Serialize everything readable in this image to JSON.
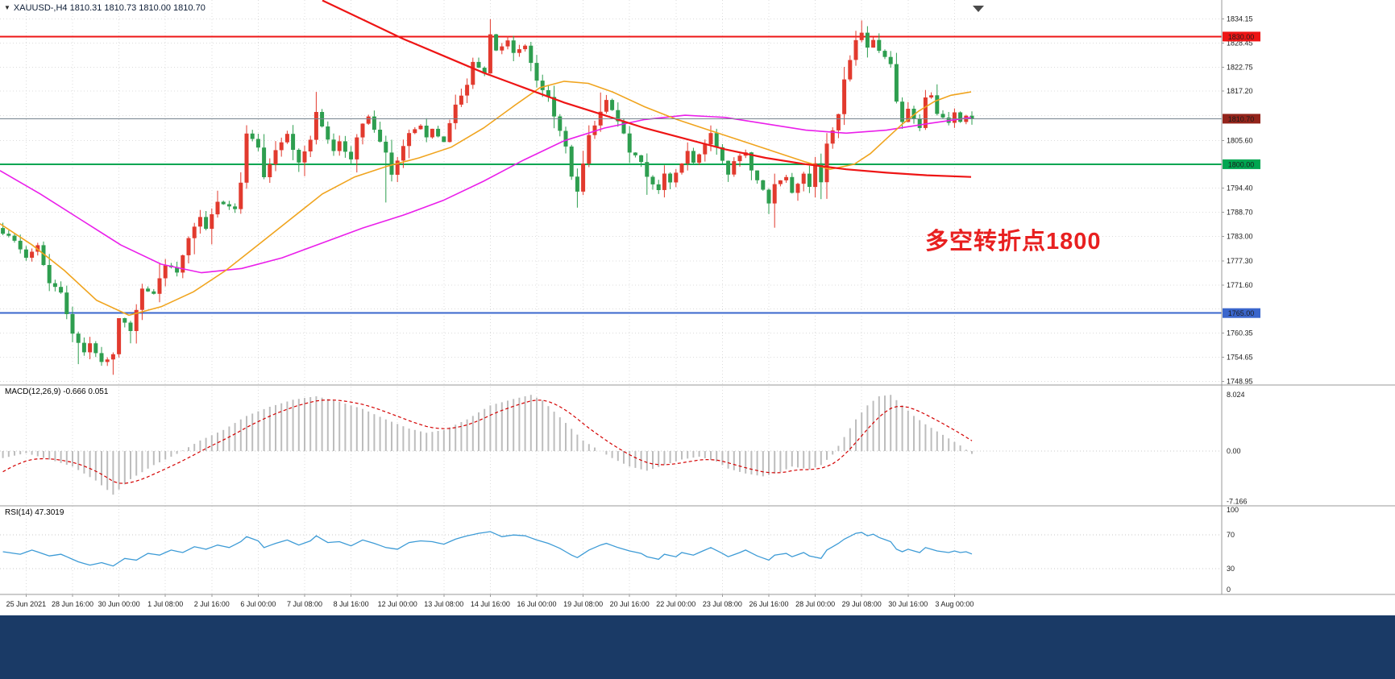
{
  "window": {
    "symbol_info": "XAUUSD-,H4  1810.31 1810.73 1810.00 1810.70",
    "symbol": "XAUUSD-",
    "timeframe": "H4",
    "ohlc": {
      "open": "1810.31",
      "high": "1810.73",
      "low": "1810.00",
      "close": "1810.70"
    },
    "dropdown_icon": "▼"
  },
  "annotation": {
    "text": "多空转折点1800",
    "color": "#e82020"
  },
  "indicators": {
    "macd_label": "MACD(12,26,9) -0.666 0.051",
    "rsi_label": "RSI(14) 47.3019"
  },
  "colors": {
    "bull": "#e23a2e",
    "bear": "#2e9e4f",
    "ma_orange": "#f0a41e",
    "ma_magenta": "#ea1fea",
    "ma_red": "#ee1515",
    "macd_hist": "#bdbdbd",
    "macd_signal": "#d40000",
    "rsi_line": "#3d9bd6",
    "grid": "#dcdcdc",
    "separator": "#999999",
    "axis_text": "#1b1b1b",
    "bottom_bar": "#1a3a66",
    "shift_marker": "#4a4a4a",
    "current_line": "#76838f",
    "current_label_bg": "#93241b"
  },
  "chart_data": {
    "type": "candlestick",
    "title": "XAUUSD- H4 with MACD(12,26,9) and RSI(14)",
    "num_candles": 168,
    "first_open": 1785.0,
    "price_axis": {
      "min": 1748.1,
      "max": 1838.6,
      "ticks": [
        "1834.15",
        "1828.45",
        "1822.75",
        "1817.20",
        "1805.60",
        "1794.40",
        "1788.70",
        "1783.00",
        "1777.30",
        "1771.60",
        "1760.35",
        "1754.65",
        "1748.95"
      ],
      "grid": [
        1834.15,
        1828.45,
        1822.75,
        1817.2,
        1811.45,
        1805.6,
        1800.0,
        1794.4,
        1788.7,
        1783.0,
        1777.3,
        1771.6,
        1766.0,
        1760.35,
        1754.65,
        1748.95
      ]
    },
    "time_labels": [
      "25 Jun 2021",
      "28 Jun 16:00",
      "30 Jun 00:00",
      "1 Jul 08:00",
      "2 Jul 16:00",
      "6 Jul 00:00",
      "7 Jul 08:00",
      "8 Jul 16:00",
      "12 Jul 00:00",
      "13 Jul 08:00",
      "14 Jul 16:00",
      "16 Jul 00:00",
      "19 Jul 08:00",
      "20 Jul 16:00",
      "22 Jul 00:00",
      "23 Jul 08:00",
      "26 Jul 16:00",
      "28 Jul 00:00",
      "29 Jul 08:00",
      "30 Jul 16:00",
      "3 Aug 00:00"
    ],
    "grid_first_candle": 4,
    "grid_candle_step": 8,
    "levels": [
      {
        "value": 1830.0,
        "label": "1830.00",
        "line_color": "#ee1515",
        "label_bg": "#ee1515",
        "width": 2,
        "kind": "resistance"
      },
      {
        "value": 1800.0,
        "label": "1800.00",
        "line_color": "#00a651",
        "label_bg": "#00a651",
        "width": 2,
        "kind": "pivot"
      },
      {
        "value": 1765.0,
        "label": "1765.00",
        "line_color": "#3a66cc",
        "label_bg": "#3a66cc",
        "width": 2,
        "kind": "support"
      }
    ],
    "current_price": {
      "value": 1810.7,
      "label": "1810.70"
    },
    "close_waypoints": [
      [
        0,
        1784
      ],
      [
        1,
        1783.5
      ],
      [
        4,
        1778
      ],
      [
        6,
        1781
      ],
      [
        8,
        1772
      ],
      [
        10,
        1770
      ],
      [
        12,
        1760
      ],
      [
        14,
        1756
      ],
      [
        15,
        1758
      ],
      [
        17,
        1753.5
      ],
      [
        19,
        1755
      ],
      [
        20,
        1764
      ],
      [
        22,
        1761
      ],
      [
        24,
        1771
      ],
      [
        26,
        1769.5
      ],
      [
        28,
        1776.5
      ],
      [
        30,
        1774.5
      ],
      [
        32,
        1782.5
      ],
      [
        34,
        1787.5
      ],
      [
        35,
        1784.5
      ],
      [
        37,
        1791.5
      ],
      [
        40,
        1789.5
      ],
      [
        41,
        1796
      ],
      [
        42,
        1807.5
      ],
      [
        44,
        1804
      ],
      [
        45,
        1797
      ],
      [
        47,
        1803
      ],
      [
        49,
        1807
      ],
      [
        50,
        1803.5
      ],
      [
        51,
        1800.5
      ],
      [
        53,
        1806
      ],
      [
        54,
        1812
      ],
      [
        56,
        1806
      ],
      [
        57,
        1803
      ],
      [
        58,
        1805.5
      ],
      [
        60,
        1801
      ],
      [
        61,
        1806
      ],
      [
        62,
        1809.5
      ],
      [
        63,
        1811
      ],
      [
        65,
        1805
      ],
      [
        66,
        1803
      ],
      [
        67,
        1797.5
      ],
      [
        69,
        1804
      ],
      [
        70,
        1807
      ],
      [
        72,
        1809
      ],
      [
        73,
        1806
      ],
      [
        74,
        1808
      ],
      [
        76,
        1805
      ],
      [
        77,
        1810
      ],
      [
        78,
        1814
      ],
      [
        80,
        1818.5
      ],
      [
        81,
        1824
      ],
      [
        83,
        1821
      ],
      [
        84,
        1830.5
      ],
      [
        85,
        1826.5
      ],
      [
        87,
        1829
      ],
      [
        88,
        1826
      ],
      [
        90,
        1828
      ],
      [
        91,
        1824
      ],
      [
        92,
        1820
      ],
      [
        94,
        1815.5
      ],
      [
        95,
        1811
      ],
      [
        97,
        1804.5
      ],
      [
        98,
        1797
      ],
      [
        99,
        1793.5
      ],
      [
        100,
        1800
      ],
      [
        101,
        1806.5
      ],
      [
        103,
        1812
      ],
      [
        104,
        1815
      ],
      [
        106,
        1810
      ],
      [
        107,
        1807
      ],
      [
        108,
        1803
      ],
      [
        110,
        1800.5
      ],
      [
        111,
        1797
      ],
      [
        113,
        1794
      ],
      [
        114,
        1798
      ],
      [
        115,
        1795.5
      ],
      [
        117,
        1800
      ],
      [
        118,
        1803
      ],
      [
        119,
        1800
      ],
      [
        121,
        1804.5
      ],
      [
        122,
        1807
      ],
      [
        124,
        1801
      ],
      [
        125,
        1797.5
      ],
      [
        126,
        1800.5
      ],
      [
        128,
        1803
      ],
      [
        129,
        1798.5
      ],
      [
        131,
        1794
      ],
      [
        132,
        1791
      ],
      [
        133,
        1795.5
      ],
      [
        135,
        1797
      ],
      [
        136,
        1793.5
      ],
      [
        138,
        1798
      ],
      [
        139,
        1795
      ],
      [
        140,
        1800.5
      ],
      [
        141,
        1795.5
      ],
      [
        142,
        1804.5
      ],
      [
        144,
        1812
      ],
      [
        145,
        1820
      ],
      [
        147,
        1829
      ],
      [
        148,
        1831
      ],
      [
        149,
        1827.5
      ],
      [
        150,
        1829
      ],
      [
        151,
        1826.5
      ],
      [
        153,
        1823.5
      ],
      [
        154,
        1814.5
      ],
      [
        155,
        1810
      ],
      [
        156,
        1813
      ],
      [
        158,
        1808.5
      ],
      [
        159,
        1815.5
      ],
      [
        160,
        1816.5
      ],
      [
        161,
        1812
      ],
      [
        163,
        1809.5
      ],
      [
        164,
        1812
      ],
      [
        165,
        1810
      ],
      [
        166,
        1811.5
      ],
      [
        167,
        1810.7
      ]
    ],
    "wick_overrides": {
      "13": {
        "low": 1753.0
      },
      "19": {
        "low": 1750.5
      },
      "54": {
        "high": 1817.0
      },
      "66": {
        "low": 1791.0
      },
      "84": {
        "high": 1834.1
      },
      "99": {
        "low": 1789.8
      },
      "132": {
        "low": 1788.3
      },
      "141": {
        "low": 1791.8
      },
      "148": {
        "high": 1833.8
      }
    },
    "ma_orange": [
      [
        0,
        1786
      ],
      [
        40,
        1781
      ],
      [
        80,
        1775
      ],
      [
        120,
        1768
      ],
      [
        160,
        1764.5
      ],
      [
        200,
        1766.5
      ],
      [
        240,
        1770
      ],
      [
        280,
        1775
      ],
      [
        320,
        1781
      ],
      [
        360,
        1787
      ],
      [
        400,
        1793
      ],
      [
        440,
        1797
      ],
      [
        480,
        1799.5
      ],
      [
        520,
        1801.5
      ],
      [
        560,
        1804
      ],
      [
        600,
        1808.5
      ],
      [
        640,
        1814
      ],
      [
        670,
        1818
      ],
      [
        700,
        1819.5
      ],
      [
        730,
        1819
      ],
      [
        760,
        1817
      ],
      [
        800,
        1813.5
      ],
      [
        840,
        1810.5
      ],
      [
        880,
        1808
      ],
      [
        920,
        1805.5
      ],
      [
        960,
        1803
      ],
      [
        1000,
        1800.5
      ],
      [
        1030,
        1798.8
      ],
      [
        1060,
        1800
      ],
      [
        1080,
        1802.5
      ],
      [
        1100,
        1806
      ],
      [
        1120,
        1809.5
      ],
      [
        1140,
        1812.5
      ],
      [
        1160,
        1814.8
      ],
      [
        1180,
        1816.2
      ],
      [
        1205,
        1817
      ]
    ],
    "ma_magenta": [
      [
        0,
        1798.5
      ],
      [
        50,
        1793
      ],
      [
        100,
        1787
      ],
      [
        150,
        1781
      ],
      [
        200,
        1776.5
      ],
      [
        250,
        1774.5
      ],
      [
        300,
        1775.5
      ],
      [
        350,
        1778
      ],
      [
        400,
        1781.5
      ],
      [
        450,
        1785
      ],
      [
        500,
        1788
      ],
      [
        550,
        1791.5
      ],
      [
        600,
        1796
      ],
      [
        650,
        1801
      ],
      [
        700,
        1805.5
      ],
      [
        750,
        1808.5
      ],
      [
        800,
        1810.5
      ],
      [
        850,
        1811.5
      ],
      [
        900,
        1811
      ],
      [
        950,
        1809.5
      ],
      [
        1000,
        1808
      ],
      [
        1050,
        1807.3
      ],
      [
        1100,
        1808
      ],
      [
        1150,
        1809.5
      ],
      [
        1205,
        1811
      ]
    ],
    "ma_red": [
      [
        400,
        1838.5
      ],
      [
        450,
        1834
      ],
      [
        500,
        1829.5
      ],
      [
        550,
        1825.5
      ],
      [
        600,
        1821.5
      ],
      [
        650,
        1818
      ],
      [
        700,
        1814.5
      ],
      [
        750,
        1811.5
      ],
      [
        800,
        1808.5
      ],
      [
        850,
        1806
      ],
      [
        900,
        1803.5
      ],
      [
        950,
        1801.5
      ],
      [
        1000,
        1800
      ],
      [
        1050,
        1798.8
      ],
      [
        1100,
        1798
      ],
      [
        1150,
        1797.4
      ],
      [
        1205,
        1797
      ]
    ],
    "macd": {
      "axis_labels": [
        "8.024",
        "0.00",
        "-7.166"
      ],
      "axis_values": [
        8.024,
        0,
        -7.166
      ],
      "main_waypoints": [
        [
          0,
          -1.0
        ],
        [
          4,
          -0.3
        ],
        [
          8,
          -1.2
        ],
        [
          12,
          -2.2
        ],
        [
          16,
          -4.2
        ],
        [
          19,
          -6.2
        ],
        [
          22,
          -4.0
        ],
        [
          26,
          -2.0
        ],
        [
          30,
          -0.4
        ],
        [
          34,
          1.5
        ],
        [
          38,
          3.0
        ],
        [
          42,
          5.0
        ],
        [
          46,
          6.3
        ],
        [
          50,
          7.3
        ],
        [
          54,
          7.8
        ],
        [
          58,
          7.0
        ],
        [
          62,
          6.0
        ],
        [
          66,
          4.5
        ],
        [
          70,
          3.2
        ],
        [
          73,
          2.6
        ],
        [
          76,
          3.0
        ],
        [
          80,
          4.5
        ],
        [
          84,
          6.5
        ],
        [
          88,
          7.4
        ],
        [
          91,
          8.0
        ],
        [
          93,
          7.2
        ],
        [
          97,
          4.0
        ],
        [
          100,
          1.5
        ],
        [
          103,
          0.0
        ],
        [
          105,
          -1.0
        ],
        [
          108,
          -2.2
        ],
        [
          111,
          -2.8
        ],
        [
          114,
          -2.0
        ],
        [
          117,
          -1.2
        ],
        [
          120,
          -0.8
        ],
        [
          123,
          -1.5
        ],
        [
          125,
          -2.5
        ],
        [
          128,
          -3.2
        ],
        [
          131,
          -3.6
        ],
        [
          134,
          -3.0
        ],
        [
          136,
          -2.2
        ],
        [
          139,
          -2.6
        ],
        [
          141,
          -2.0
        ],
        [
          143,
          -0.5
        ],
        [
          145,
          2.0
        ],
        [
          147,
          4.5
        ],
        [
          149,
          6.5
        ],
        [
          151,
          7.8
        ],
        [
          153,
          8.0
        ],
        [
          155,
          6.5
        ],
        [
          157,
          5.0
        ],
        [
          159,
          3.8
        ],
        [
          161,
          2.8
        ],
        [
          163,
          1.8
        ],
        [
          165,
          0.8
        ],
        [
          167,
          -0.4
        ]
      ]
    },
    "rsi": {
      "axis_labels": [
        "100",
        "70",
        "30",
        "0"
      ],
      "axis_values": [
        100,
        70,
        30,
        0
      ],
      "level_lines": [
        70,
        30
      ],
      "current": 47.3019,
      "waypoints": [
        [
          0,
          50
        ],
        [
          3,
          47
        ],
        [
          5,
          52
        ],
        [
          8,
          45
        ],
        [
          10,
          47
        ],
        [
          13,
          38
        ],
        [
          15,
          34
        ],
        [
          17,
          37
        ],
        [
          19,
          33
        ],
        [
          21,
          42
        ],
        [
          23,
          40
        ],
        [
          25,
          48
        ],
        [
          27,
          46
        ],
        [
          29,
          52
        ],
        [
          31,
          49
        ],
        [
          33,
          56
        ],
        [
          35,
          53
        ],
        [
          37,
          58
        ],
        [
          39,
          55
        ],
        [
          41,
          62
        ],
        [
          42,
          68
        ],
        [
          44,
          63
        ],
        [
          45,
          55
        ],
        [
          47,
          60
        ],
        [
          49,
          64
        ],
        [
          51,
          58
        ],
        [
          53,
          63
        ],
        [
          54,
          69
        ],
        [
          56,
          61
        ],
        [
          58,
          62
        ],
        [
          60,
          57
        ],
        [
          62,
          64
        ],
        [
          64,
          60
        ],
        [
          66,
          55
        ],
        [
          68,
          53
        ],
        [
          70,
          61
        ],
        [
          72,
          63
        ],
        [
          74,
          62
        ],
        [
          76,
          59
        ],
        [
          78,
          65
        ],
        [
          80,
          69
        ],
        [
          82,
          72
        ],
        [
          84,
          74
        ],
        [
          86,
          68
        ],
        [
          88,
          70
        ],
        [
          90,
          69
        ],
        [
          92,
          64
        ],
        [
          94,
          60
        ],
        [
          96,
          54
        ],
        [
          98,
          46
        ],
        [
          99,
          43
        ],
        [
          101,
          52
        ],
        [
          103,
          58
        ],
        [
          104,
          60
        ],
        [
          106,
          55
        ],
        [
          108,
          51
        ],
        [
          110,
          48
        ],
        [
          111,
          44
        ],
        [
          113,
          41
        ],
        [
          114,
          47
        ],
        [
          116,
          44
        ],
        [
          117,
          49
        ],
        [
          119,
          46
        ],
        [
          121,
          52
        ],
        [
          122,
          55
        ],
        [
          124,
          48
        ],
        [
          125,
          44
        ],
        [
          127,
          49
        ],
        [
          128,
          52
        ],
        [
          130,
          45
        ],
        [
          132,
          40
        ],
        [
          133,
          46
        ],
        [
          135,
          48
        ],
        [
          136,
          44
        ],
        [
          138,
          49
        ],
        [
          139,
          45
        ],
        [
          141,
          42
        ],
        [
          142,
          52
        ],
        [
          144,
          60
        ],
        [
          145,
          65
        ],
        [
          147,
          72
        ],
        [
          148,
          73
        ],
        [
          149,
          69
        ],
        [
          150,
          71
        ],
        [
          151,
          67
        ],
        [
          153,
          62
        ],
        [
          154,
          53
        ],
        [
          155,
          50
        ],
        [
          156,
          53
        ],
        [
          158,
          49
        ],
        [
          159,
          55
        ],
        [
          161,
          51
        ],
        [
          163,
          49
        ],
        [
          164,
          51
        ],
        [
          165,
          49
        ],
        [
          166,
          50
        ],
        [
          167,
          47.3
        ]
      ]
    }
  }
}
